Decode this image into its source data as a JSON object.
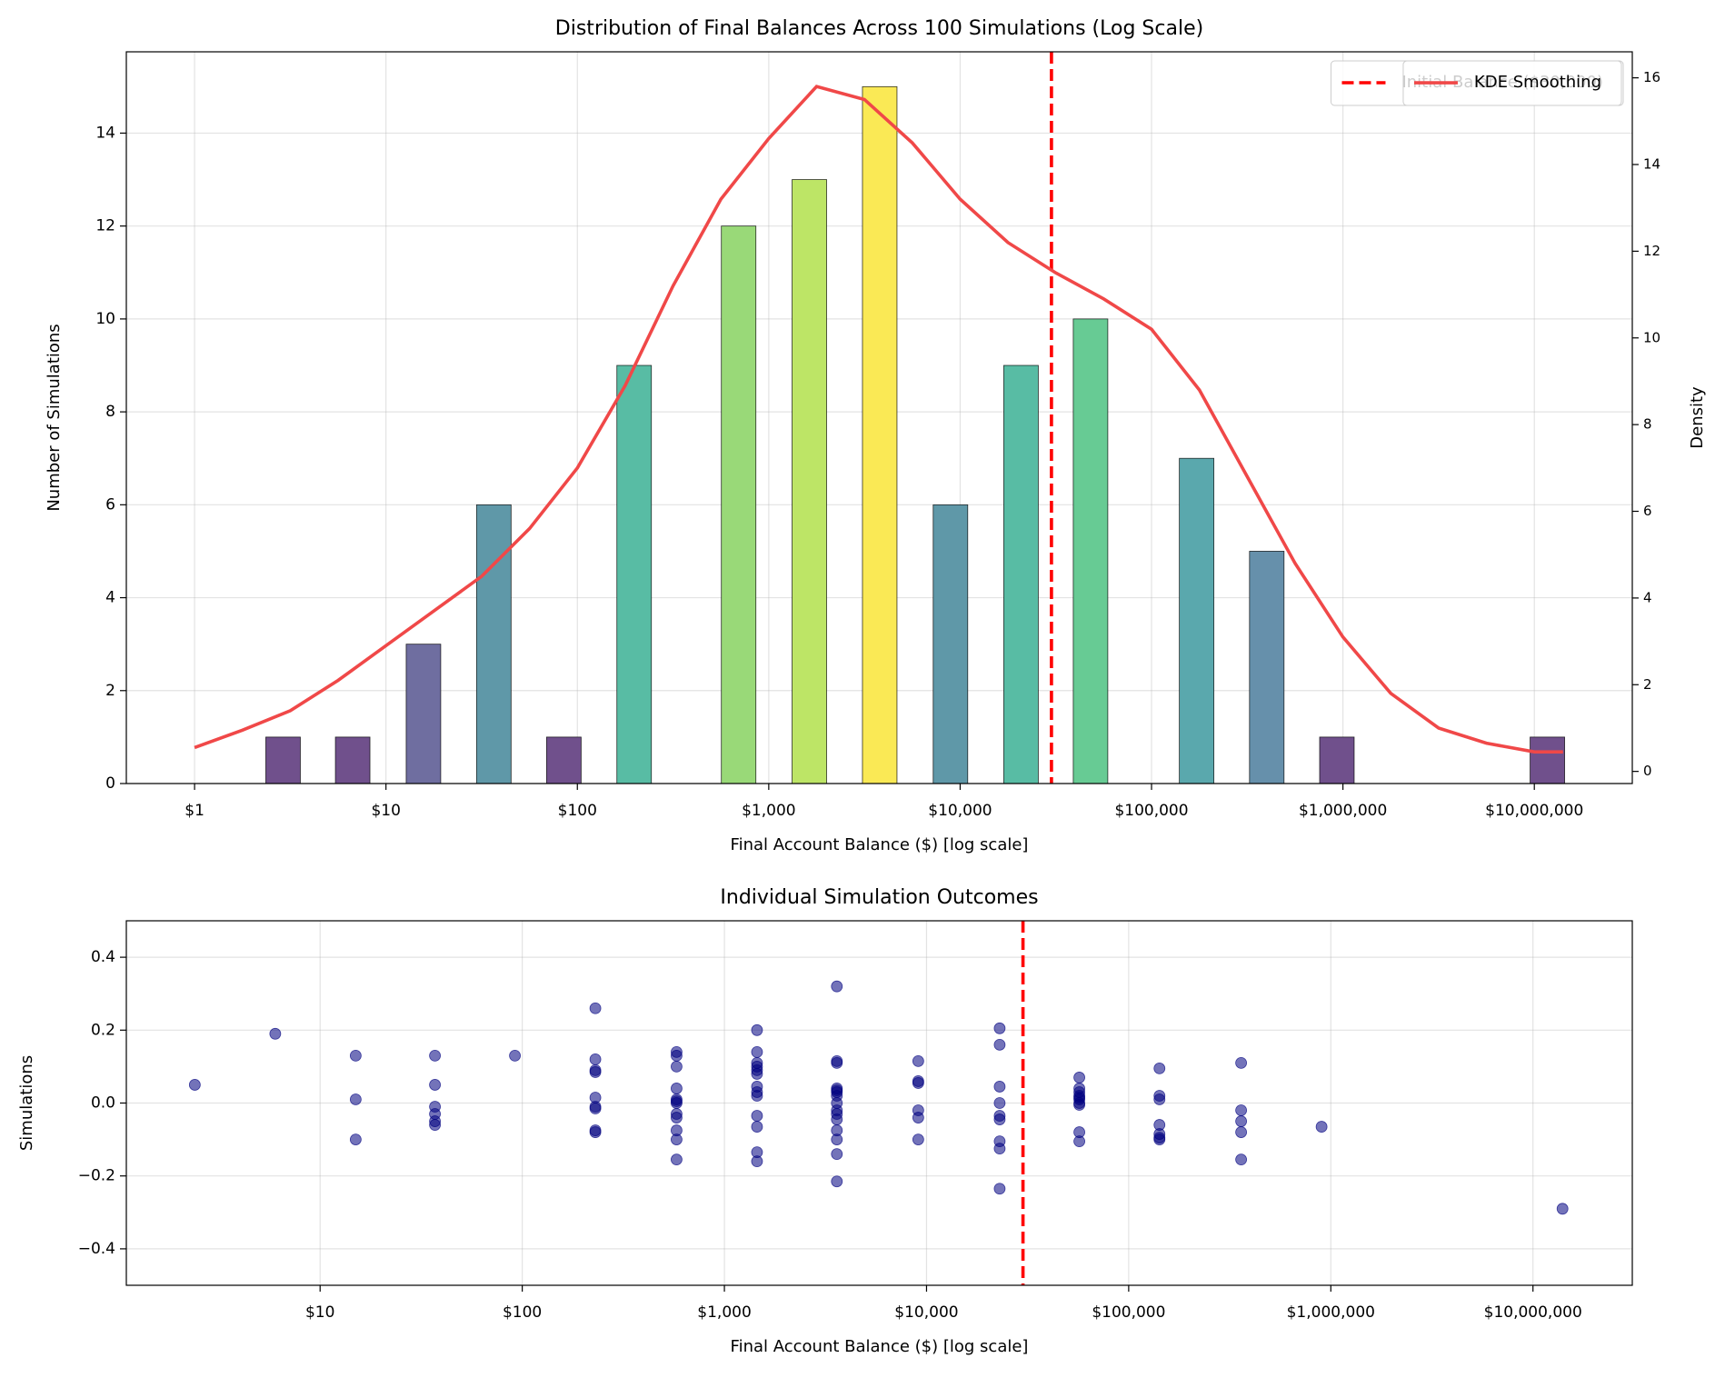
{
  "chart_data": [
    {
      "type": "bar",
      "title": "Distribution of Final Balances Across 100 Simulations (Log Scale)",
      "xlabel": "Final Account Balance ($) [log scale]",
      "ylabel": "Number of Simulations",
      "y2label": "Density",
      "xscale": "log",
      "x": [
        2.9,
        6.7,
        15.7,
        36.6,
        85,
        198,
        696,
        1630,
        3800,
        8900,
        20800,
        48000,
        172000,
        400000,
        930000,
        11700000
      ],
      "values": [
        1,
        1,
        3,
        6,
        1,
        9,
        12,
        13,
        15,
        6,
        9,
        10,
        7,
        5,
        1,
        1
      ],
      "colors": [
        "#70508c",
        "#70508c",
        "#6f6ea0",
        "#5f98a8",
        "#70508c",
        "#58bca4",
        "#99d978",
        "#bde566",
        "#fae955",
        "#5f98a8",
        "#58bca4",
        "#67cb94",
        "#5aa8ad",
        "#6690ab",
        "#70508c",
        "#70508c"
      ],
      "lines": [
        {
          "name": "KDE Smoothing",
          "color": "#f04848",
          "axis": "y2",
          "x": [
            1,
            1.778,
            3.162,
            5.623,
            10,
            17.78,
            31.62,
            56.23,
            100,
            177.8,
            316.2,
            562.3,
            1000,
            1778,
            3162,
            5623,
            10000,
            17783,
            31623,
            56234,
            100000,
            177828,
            316228,
            562341,
            1000000,
            1778279,
            3162278,
            5623413,
            10000000,
            14125375
          ],
          "values": [
            0.55,
            0.95,
            1.4,
            2.1,
            2.9,
            3.7,
            4.5,
            5.6,
            7.0,
            8.9,
            11.2,
            13.2,
            14.6,
            15.8,
            15.5,
            14.5,
            13.2,
            12.2,
            11.5,
            10.9,
            10.2,
            8.8,
            6.8,
            4.8,
            3.1,
            1.8,
            1.0,
            0.65,
            0.45,
            0.45
          ]
        }
      ],
      "vline": {
        "x": 30000,
        "label": "Initial Balance ($30,000)",
        "color": "#ff0000"
      },
      "xlim": [
        0.44,
        32500000
      ],
      "xticks": [
        {
          "value": 1,
          "label": "$1"
        },
        {
          "value": 10,
          "label": "$10"
        },
        {
          "value": 100,
          "label": "$100"
        },
        {
          "value": 1000,
          "label": "$1,000"
        },
        {
          "value": 10000,
          "label": "$10,000"
        },
        {
          "value": 100000,
          "label": "$100,000"
        },
        {
          "value": 1000000,
          "label": "$1,000,000"
        },
        {
          "value": 10000000,
          "label": "$10,000,000"
        }
      ],
      "ylim": [
        0,
        15.75
      ],
      "yticks": [
        0,
        2,
        4,
        6,
        8,
        10,
        12,
        14
      ],
      "y2lim": [
        -0.28,
        16.6
      ],
      "y2ticks": [
        0,
        2,
        4,
        6,
        8,
        10,
        12,
        14,
        16
      ],
      "y2color": "#ff0000",
      "grid": true,
      "legend": "upper right"
    },
    {
      "type": "scatter",
      "title": "Individual Simulation Outcomes",
      "xlabel": "Final Account Balance ($) [log scale]",
      "ylabel": "Simulations",
      "xscale": "log",
      "color": "#000080",
      "x": [
        2.4,
        6,
        15,
        15,
        15,
        37,
        37,
        37,
        37,
        37,
        37,
        92,
        230,
        230,
        230,
        230,
        230,
        230,
        230,
        230,
        230,
        580,
        580,
        580,
        580,
        580,
        580,
        580,
        580,
        580,
        580,
        580,
        580,
        1450,
        1450,
        1450,
        1450,
        1450,
        1450,
        1450,
        1450,
        1450,
        1450,
        1450,
        1450,
        1450,
        3600,
        3600,
        3600,
        3600,
        3600,
        3600,
        3600,
        3600,
        3600,
        3600,
        3600,
        3600,
        3600,
        3600,
        3600,
        9100,
        9100,
        9100,
        9100,
        9100,
        9100,
        23000,
        23000,
        23000,
        23000,
        23000,
        23000,
        23000,
        23000,
        23000,
        57000,
        57000,
        57000,
        57000,
        57000,
        57000,
        57000,
        57000,
        57000,
        57000,
        142000,
        142000,
        142000,
        142000,
        142000,
        142000,
        142000,
        360000,
        360000,
        360000,
        360000,
        360000,
        900000,
        14000000
      ],
      "values": [
        0.05,
        0.19,
        0.13,
        0.01,
        -0.1,
        0.13,
        0.05,
        -0.01,
        -0.03,
        -0.05,
        -0.06,
        0.13,
        0.26,
        0.12,
        0.09,
        0.085,
        0.015,
        -0.01,
        -0.015,
        -0.075,
        -0.08,
        0.14,
        0.13,
        0.1,
        0.04,
        0.01,
        0.005,
        0.0,
        -0.03,
        -0.04,
        -0.075,
        -0.1,
        -0.155,
        0.2,
        0.14,
        0.11,
        0.1,
        0.09,
        0.08,
        0.045,
        0.03,
        0.02,
        -0.035,
        -0.065,
        -0.135,
        -0.16,
        0.32,
        0.115,
        0.11,
        0.04,
        0.035,
        0.03,
        0.02,
        0.0,
        -0.02,
        -0.03,
        -0.045,
        -0.075,
        -0.1,
        -0.14,
        -0.215,
        0.115,
        0.06,
        0.055,
        -0.02,
        -0.04,
        -0.1,
        0.205,
        0.16,
        0.045,
        0.0,
        -0.035,
        -0.045,
        -0.105,
        -0.125,
        -0.235,
        0.07,
        0.04,
        0.03,
        0.02,
        0.015,
        0.01,
        0.0,
        -0.005,
        -0.08,
        -0.105,
        0.095,
        0.02,
        0.01,
        -0.06,
        -0.085,
        -0.095,
        -0.1,
        0.11,
        -0.02,
        -0.05,
        -0.08,
        -0.155,
        -0.065,
        -0.29
      ],
      "vline": {
        "x": 30000,
        "color": "#ff0000"
      },
      "xlim": [
        1.1,
        31000000
      ],
      "xticks": [
        {
          "value": 10,
          "label": "$10"
        },
        {
          "value": 100,
          "label": "$100"
        },
        {
          "value": 1000,
          "label": "$1,000"
        },
        {
          "value": 10000,
          "label": "$10,000"
        },
        {
          "value": 100000,
          "label": "$100,000"
        },
        {
          "value": 1000000,
          "label": "$1,000,000"
        },
        {
          "value": 10000000,
          "label": "$10,000,000"
        }
      ],
      "ylim": [
        -0.5,
        0.5
      ],
      "yticks": [
        {
          "value": -0.4,
          "label": "−0.4"
        },
        {
          "value": -0.2,
          "label": "−0.2"
        },
        {
          "value": 0,
          "label": "0.0"
        },
        0.2,
        0.4
      ],
      "grid": true
    }
  ]
}
